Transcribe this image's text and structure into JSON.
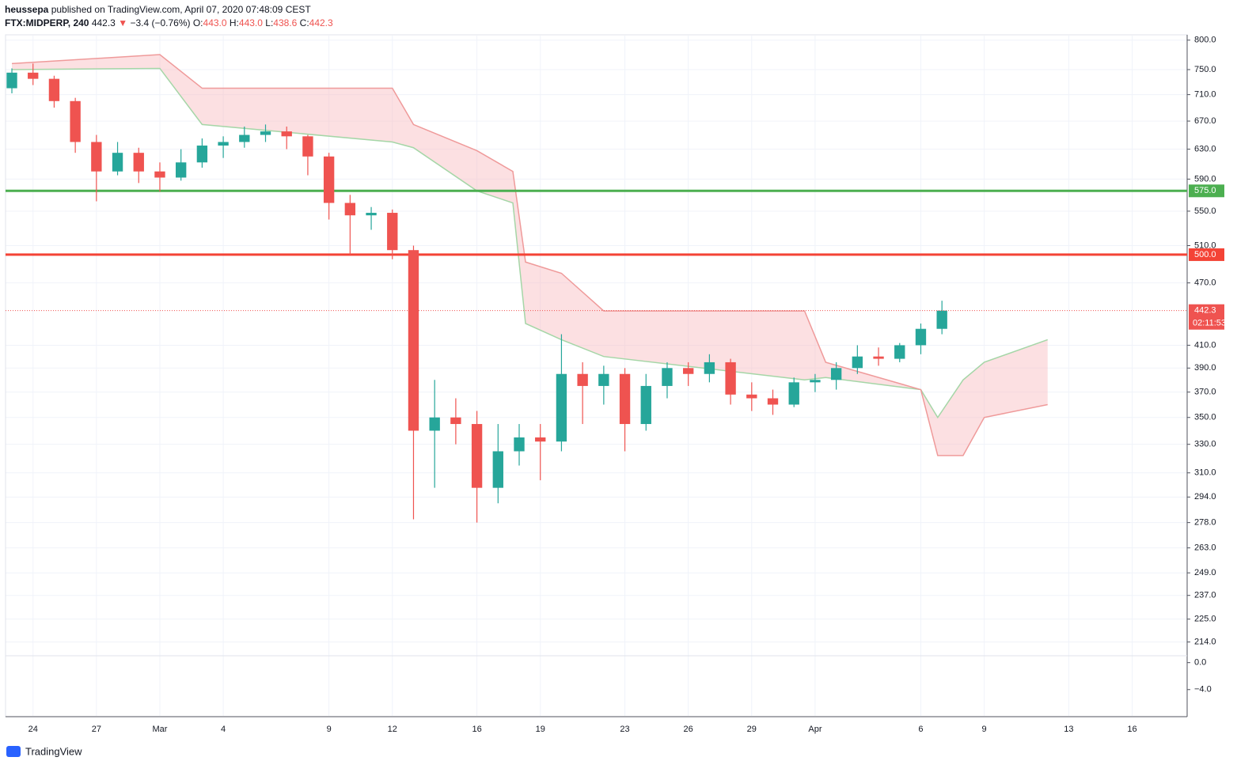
{
  "header": {
    "author": "heussepa",
    "published": "published on TradingView.com, April 07, 2020 07:48:09 CEST",
    "symbol": "FTX:MIDPERP, 240",
    "last": "442.3",
    "arrow": "▼",
    "change": "−3.4 (−0.76%)",
    "ohlc": [
      {
        "label": "O:",
        "value": "443.0"
      },
      {
        "label": "H:",
        "value": "443.0"
      },
      {
        "label": "L:",
        "value": "438.6"
      },
      {
        "label": "C:",
        "value": "442.3"
      }
    ]
  },
  "footer": {
    "brand": "TradingView"
  },
  "chart_data": {
    "type": "candlestick",
    "log_scale": true,
    "grid": true,
    "up_color": "#26a69a",
    "down_color": "#ef5350",
    "xlim": [
      -1.3,
      54.6
    ],
    "ylim": [
      208,
      808
    ],
    "xticks": [
      {
        "value": 0,
        "label": "24"
      },
      {
        "value": 3,
        "label": "27"
      },
      {
        "value": 6,
        "label": "Mar"
      },
      {
        "value": 9,
        "label": "4"
      },
      {
        "value": 14,
        "label": "9"
      },
      {
        "value": 17,
        "label": "12"
      },
      {
        "value": 21,
        "label": "16"
      },
      {
        "value": 24,
        "label": "19"
      },
      {
        "value": 28,
        "label": "23"
      },
      {
        "value": 31,
        "label": "26"
      },
      {
        "value": 34,
        "label": "29"
      },
      {
        "value": 37,
        "label": "Apr"
      },
      {
        "value": 42,
        "label": "6"
      },
      {
        "value": 45,
        "label": "9"
      },
      {
        "value": 49,
        "label": "13"
      },
      {
        "value": 52,
        "label": "16"
      }
    ],
    "yticks": [
      {
        "value": 800,
        "label": "800.0"
      },
      {
        "value": 750,
        "label": "750.0"
      },
      {
        "value": 710,
        "label": "710.0"
      },
      {
        "value": 670,
        "label": "670.0"
      },
      {
        "value": 630,
        "label": "630.0"
      },
      {
        "value": 590,
        "label": "590.0"
      },
      {
        "value": 550,
        "label": "550.0"
      },
      {
        "value": 510,
        "label": "510.0"
      },
      {
        "value": 470,
        "label": "470.0"
      },
      {
        "value": 410,
        "label": "410.0"
      },
      {
        "value": 390,
        "label": "390.0"
      },
      {
        "value": 370,
        "label": "370.0"
      },
      {
        "value": 350,
        "label": "350.0"
      },
      {
        "value": 330,
        "label": "330.0"
      },
      {
        "value": 310,
        "label": "310.0"
      },
      {
        "value": 294,
        "label": "294.0"
      },
      {
        "value": 278,
        "label": "278.0"
      },
      {
        "value": 263,
        "label": "263.0"
      },
      {
        "value": 249,
        "label": "249.0"
      },
      {
        "value": 237,
        "label": "237.0"
      },
      {
        "value": 225,
        "label": "225.0"
      },
      {
        "value": 214,
        "label": "214.0"
      }
    ],
    "candles": {
      "x": [
        -1,
        0,
        1,
        2,
        3,
        4,
        5,
        6,
        7,
        8,
        9,
        10,
        11,
        12,
        13,
        14,
        15,
        16,
        17,
        18,
        19,
        20,
        21,
        22,
        23,
        24,
        25,
        26,
        27,
        28,
        29,
        30,
        31,
        32,
        33,
        34,
        35,
        36,
        37,
        38,
        39,
        40,
        41,
        42,
        43
      ],
      "open": [
        720,
        745,
        735,
        700,
        640,
        600,
        625,
        600,
        592,
        612,
        635,
        640,
        650,
        655,
        648,
        620,
        560,
        545,
        548,
        505,
        340,
        350,
        345,
        300,
        325,
        335,
        332,
        385,
        375,
        385,
        345,
        375,
        390,
        385,
        395,
        368,
        365,
        360,
        378,
        380,
        390,
        400,
        398,
        410,
        425
      ],
      "high": [
        752,
        760,
        740,
        705,
        650,
        640,
        632,
        612,
        630,
        645,
        648,
        662,
        665,
        662,
        650,
        625,
        570,
        555,
        552,
        510,
        380,
        365,
        355,
        345,
        345,
        345,
        420,
        395,
        392,
        390,
        385,
        395,
        395,
        402,
        398,
        378,
        372,
        382,
        385,
        395,
        410,
        408,
        412,
        430,
        452
      ],
      "low": [
        712,
        725,
        690,
        625,
        562,
        595,
        585,
        574,
        588,
        605,
        618,
        632,
        640,
        630,
        595,
        540,
        500,
        528,
        495,
        280,
        300,
        330,
        278,
        290,
        315,
        305,
        325,
        345,
        360,
        325,
        340,
        365,
        375,
        378,
        360,
        355,
        352,
        358,
        370,
        372,
        385,
        392,
        395,
        402,
        420
      ],
      "close": [
        745,
        735,
        700,
        640,
        600,
        625,
        600,
        592,
        612,
        635,
        640,
        650,
        655,
        648,
        620,
        560,
        545,
        548,
        505,
        340,
        350,
        345,
        300,
        325,
        335,
        332,
        385,
        375,
        385,
        345,
        375,
        390,
        385,
        395,
        368,
        365,
        360,
        378,
        380,
        390,
        400,
        398,
        410,
        425,
        442.3
      ]
    },
    "cloud": {
      "x": [
        -1,
        6,
        8,
        17,
        18,
        21,
        22.7,
        23.3,
        25,
        27,
        36.5,
        37.5,
        42,
        42.8,
        44,
        45,
        48
      ],
      "span_a": [
        750,
        752,
        665,
        640,
        632,
        575,
        560,
        430,
        415,
        400,
        380,
        382,
        372,
        350,
        380,
        395,
        415
      ],
      "span_b": [
        760,
        775,
        720,
        720,
        665,
        628,
        600,
        492,
        480,
        442,
        442,
        395,
        372,
        322,
        322,
        350,
        360
      ],
      "fill": "#f8bbbf",
      "line_a": "#a5d6a7",
      "line_b": "#ef9a9a"
    },
    "levels": [
      {
        "value": 575,
        "label": "575.0",
        "color": "#4caf50"
      },
      {
        "value": 500,
        "label": "500.0",
        "color": "#f44336"
      }
    ],
    "last_price": {
      "value": 442.3,
      "label": "442.3",
      "countdown": "02:11:53",
      "color": "#ef5350"
    },
    "osc_ylim": [
      0.9,
      -7.9
    ],
    "osc_yticks": [
      {
        "value": 0,
        "label": "0.0"
      },
      {
        "value": -4,
        "label": "−4.0"
      }
    ]
  }
}
